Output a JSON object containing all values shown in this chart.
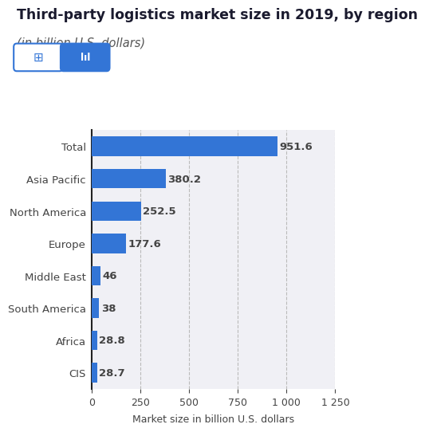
{
  "title": "Third-party logistics market size in 2019, by region",
  "subtitle": "(in billion U.S. dollars)",
  "categories": [
    "Total",
    "Asia Pacific",
    "North America",
    "Europe",
    "Middle East",
    "South America",
    "Africa",
    "CIS"
  ],
  "values": [
    951.6,
    380.2,
    252.5,
    177.6,
    46,
    38,
    28.8,
    28.7
  ],
  "bar_color": "#3375d6",
  "label_color": "#444444",
  "xlabel": "Market size in billion U.S. dollars",
  "xlim": [
    0,
    1250
  ],
  "xticks": [
    0,
    250,
    500,
    750,
    1000,
    1250
  ],
  "background_color": "#ffffff",
  "plot_bg_color": "#f0f0f5",
  "grid_color": "#bbbbbb",
  "title_color": "#1a1a2e",
  "subtitle_color": "#555555",
  "bar_height": 0.6,
  "value_fontsize": 9.5,
  "label_fontsize": 9.5,
  "title_fontsize": 12.5,
  "subtitle_fontsize": 10.5,
  "xlabel_fontsize": 9
}
